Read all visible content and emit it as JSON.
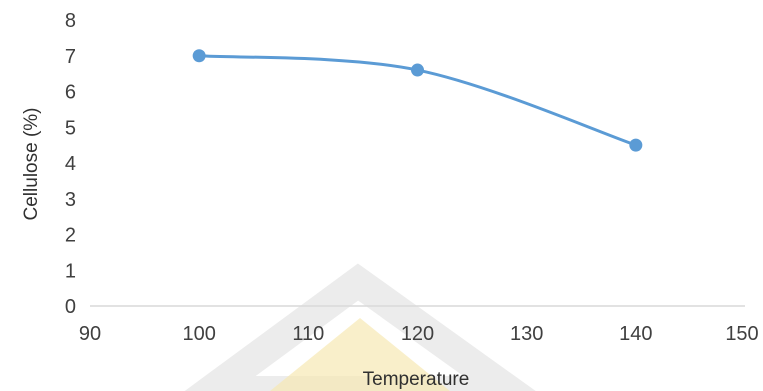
{
  "chart_data": {
    "type": "line",
    "title": "",
    "xlabel": "Temperature",
    "ylabel": "Cellulose (%)",
    "xlim": [
      90,
      150
    ],
    "ylim": [
      0,
      8
    ],
    "x_ticks": [
      "90",
      "100",
      "110",
      "120",
      "130",
      "140",
      "150"
    ],
    "y_ticks": [
      "0",
      "1",
      "2",
      "3",
      "4",
      "5",
      "6",
      "7",
      "8"
    ],
    "grid": false,
    "smooth": true,
    "series": [
      {
        "x": [
          100,
          120,
          140
        ],
        "y": [
          7.0,
          6.6,
          4.5
        ],
        "color": "#5b9bd5"
      }
    ],
    "watermark_color": "#f6e8b3"
  }
}
